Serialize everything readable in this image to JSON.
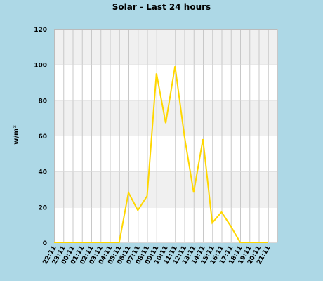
{
  "chart_data": {
    "type": "line",
    "title": "Solar - Last 24 hours",
    "xlabel": "",
    "ylabel": "w/m²",
    "ylim": [
      0,
      120
    ],
    "yticks": [
      0,
      20,
      40,
      60,
      80,
      100,
      120
    ],
    "grid": true,
    "categories": [
      "22:11",
      "23:11",
      "00:11",
      "01:11",
      "02:11",
      "03:11",
      "04:11",
      "05:11",
      "06:11",
      "07:11",
      "08:11",
      "09:11",
      "10:11",
      "11:11",
      "12:11",
      "13:11",
      "14:11",
      "15:11",
      "16:11",
      "17:11",
      "18:11",
      "19:11",
      "20:11",
      "21:11"
    ],
    "series": [
      {
        "values": [
          0,
          0,
          0,
          0,
          0,
          0,
          0,
          0,
          28,
          18,
          26,
          95,
          67,
          99,
          60,
          28,
          58,
          11,
          17,
          9,
          0,
          0,
          0,
          0
        ]
      }
    ],
    "line_color": "#ffd700",
    "plot_background": "#ffffff",
    "band_color": "#f0f0f0",
    "page_background": "#add8e6"
  }
}
